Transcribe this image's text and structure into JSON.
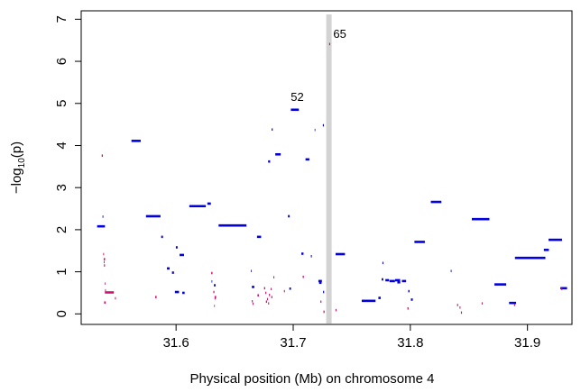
{
  "chart_data": {
    "type": "scatter",
    "title": "",
    "xlabel": "Physical position (Mb) on chromosome 4",
    "ylabel_main": "−log",
    "ylabel_sub": "10",
    "ylabel_tail": "(p)",
    "xlim": [
      31.519,
      31.938
    ],
    "ylim": [
      -0.25,
      7.2
    ],
    "xticks": [
      31.6,
      31.7,
      31.8,
      31.9
    ],
    "xtick_labels": [
      "31.6",
      "31.7",
      "31.8",
      "31.9"
    ],
    "yticks": [
      0,
      1,
      2,
      3,
      4,
      5,
      6,
      7
    ],
    "ytick_labels": [
      "0",
      "1",
      "2",
      "3",
      "4",
      "5",
      "6",
      "7"
    ],
    "grid": false,
    "legend": "none",
    "highlight": {
      "x": 31.7305,
      "color": "#d3d3d3"
    },
    "annotations": [
      {
        "text": "52",
        "x": 31.7035,
        "y": 5.06
      },
      {
        "text": "65",
        "x": 31.7398,
        "y": 6.56
      }
    ],
    "series": [
      {
        "color": "#0000e0",
        "segments": [
          [
            31.5326,
            31.5393,
            2.08
          ],
          [
            31.5372,
            31.5379,
            2.31
          ],
          [
            31.5619,
            31.5698,
            4.11
          ],
          [
            31.5743,
            31.5867,
            2.32
          ],
          [
            31.5873,
            31.5888,
            1.83
          ],
          [
            31.5922,
            31.5945,
            1.08
          ],
          [
            31.5965,
            31.5982,
            0.98
          ],
          [
            31.5998,
            31.6013,
            1.58
          ],
          [
            31.603,
            31.6068,
            1.4
          ],
          [
            31.599,
            31.6025,
            0.52
          ],
          [
            31.6053,
            31.6073,
            0.5
          ],
          [
            31.6113,
            31.6254,
            2.56
          ],
          [
            31.6267,
            31.6297,
            2.62
          ],
          [
            31.6303,
            31.6309,
            0.77
          ],
          [
            31.6323,
            31.6337,
            0.68
          ],
          [
            31.6363,
            31.6601,
            2.1
          ],
          [
            31.6638,
            31.6644,
            1.02
          ],
          [
            31.6647,
            31.6668,
            0.64
          ],
          [
            31.6691,
            31.6726,
            1.83
          ],
          [
            31.6786,
            31.6803,
            3.62
          ],
          [
            31.6816,
            31.6825,
            4.38
          ],
          [
            31.6847,
            31.6893,
            3.79
          ],
          [
            31.6955,
            31.697,
            2.32
          ],
          [
            31.6967,
            31.6981,
            0.6
          ],
          [
            31.698,
            31.7048,
            4.85
          ],
          [
            31.707,
            31.7088,
            1.43
          ],
          [
            31.7105,
            31.7138,
            3.67
          ],
          [
            31.7151,
            31.7159,
            1.37
          ],
          [
            31.7183,
            31.7189,
            4.37
          ],
          [
            31.7253,
            31.7262,
            4.48
          ],
          [
            31.7215,
            31.7245,
            0.78
          ],
          [
            31.7221,
            31.7242,
            0.74
          ],
          [
            31.7255,
            31.7264,
            0.52
          ],
          [
            31.7362,
            31.7442,
            1.42
          ],
          [
            31.7585,
            31.7703,
            0.31
          ],
          [
            31.7727,
            31.7747,
            0.38
          ],
          [
            31.7755,
            31.7769,
            0.82
          ],
          [
            31.7762,
            31.777,
            1.21
          ],
          [
            31.7787,
            31.7818,
            0.8
          ],
          [
            31.7822,
            31.7869,
            0.78
          ],
          [
            31.787,
            31.7913,
            0.8
          ],
          [
            31.7889,
            31.7914,
            0.75
          ],
          [
            31.7928,
            31.7964,
            0.78
          ],
          [
            31.7982,
            31.7993,
            0.54
          ],
          [
            31.8005,
            31.8021,
            0.34
          ],
          [
            31.8035,
            31.8124,
            1.71
          ],
          [
            31.8175,
            31.8265,
            2.66
          ],
          [
            31.8345,
            31.8352,
            1.02
          ],
          [
            31.8525,
            31.8675,
            2.25
          ],
          [
            31.8718,
            31.8818,
            0.7
          ],
          [
            31.8843,
            31.8903,
            0.26
          ],
          [
            31.8893,
            31.9153,
            1.33
          ],
          [
            31.914,
            31.9183,
            1.52
          ],
          [
            31.918,
            31.9295,
            1.76
          ],
          [
            31.9281,
            31.9338,
            0.61
          ]
        ]
      },
      {
        "color": "#cc1270",
        "segments": [
          [
            31.5365,
            31.5375,
            3.76
          ],
          [
            31.5378,
            31.5385,
            1.42
          ],
          [
            31.5382,
            31.5394,
            1.3
          ],
          [
            31.5384,
            31.5393,
            1.15
          ],
          [
            31.5383,
            31.539,
            1.23
          ],
          [
            31.5392,
            31.5398,
            0.72
          ],
          [
            31.5394,
            31.5401,
            0.56
          ],
          [
            31.5392,
            31.5469,
            0.51
          ],
          [
            31.5386,
            31.5399,
            0.27
          ],
          [
            31.5478,
            31.5486,
            0.37
          ],
          [
            31.5822,
            31.5834,
            0.4
          ],
          [
            31.63,
            31.6311,
            0.97
          ],
          [
            31.6318,
            31.6327,
            0.52
          ],
          [
            31.6329,
            31.6342,
            0.4
          ],
          [
            31.6329,
            31.6339,
            0.37
          ],
          [
            31.6325,
            31.6331,
            0.19
          ],
          [
            31.6647,
            31.6655,
            0.3
          ],
          [
            31.6653,
            31.6661,
            0.24
          ],
          [
            31.6695,
            31.6707,
            0.44
          ],
          [
            31.6751,
            31.6761,
            0.61
          ],
          [
            31.6762,
            31.6771,
            0.5
          ],
          [
            31.6767,
            31.6777,
            0.29
          ],
          [
            31.6777,
            31.6785,
            0.35
          ],
          [
            31.6786,
            31.6794,
            0.25
          ],
          [
            31.6793,
            31.6802,
            0.45
          ],
          [
            31.6808,
            31.6816,
            0.59
          ],
          [
            31.6813,
            31.6822,
            0.4
          ],
          [
            31.6831,
            31.6839,
            0.87
          ],
          [
            31.6921,
            31.6929,
            0.54
          ],
          [
            31.7081,
            31.7091,
            0.88
          ],
          [
            31.7232,
            31.7241,
            0.29
          ],
          [
            31.7258,
            31.7268,
            0.05
          ],
          [
            31.7307,
            31.7316,
            6.41
          ],
          [
            31.7361,
            31.737,
            0.09
          ],
          [
            31.7975,
            31.7985,
            0.13
          ],
          [
            31.8399,
            31.8408,
            0.21
          ],
          [
            31.842,
            31.8428,
            0.15
          ],
          [
            31.8432,
            31.8441,
            0.03
          ],
          [
            31.8609,
            31.8617,
            0.25
          ],
          [
            31.8886,
            31.8894,
            0.21
          ],
          [
            31.929,
            31.9298,
            0.59
          ]
        ]
      }
    ]
  }
}
